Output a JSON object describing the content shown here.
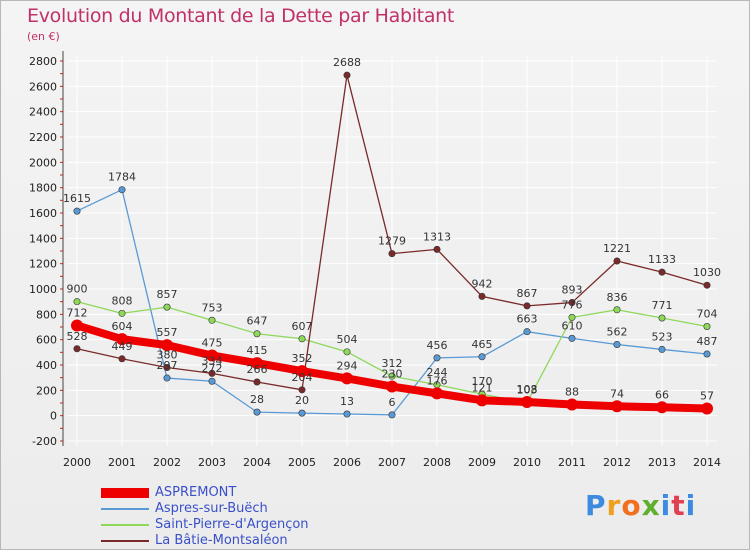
{
  "title": "Evolution du Montant de la Dette par Habitant",
  "subtitle": "(en €)",
  "logo_text": "Proxiti",
  "chart_data": {
    "type": "line",
    "x": [
      "2000",
      "2001",
      "2002",
      "2003",
      "2004",
      "2005",
      "2006",
      "2007",
      "2008",
      "2009",
      "2010",
      "2011",
      "2012",
      "2013",
      "2014"
    ],
    "ylim": [
      -200,
      2800
    ],
    "yticks": [
      -200,
      0,
      200,
      400,
      600,
      800,
      1000,
      1200,
      1400,
      1600,
      1800,
      2000,
      2200,
      2400,
      2600,
      2800
    ],
    "grid": true,
    "legend_position": "bottom-left",
    "series": [
      {
        "name": "Aspres-sur-Buëch",
        "color": "#5a9ad4",
        "width": 1.3,
        "values": [
          1615,
          1784,
          297,
          272,
          28,
          20,
          13,
          6,
          456,
          465,
          663,
          610,
          562,
          523,
          487
        ]
      },
      {
        "name": "Saint-Pierre-d'Argençon",
        "color": "#8ed85a",
        "width": 1.3,
        "values": [
          900,
          808,
          857,
          753,
          647,
          607,
          504,
          312,
          244,
          170,
          103,
          776,
          836,
          771,
          704
        ]
      },
      {
        "name": "La Bâtie-Montsaléon",
        "color": "#7a2a2a",
        "width": 1.3,
        "values": [
          528,
          449,
          380,
          334,
          266,
          204,
          null,
          1279,
          1313,
          942,
          867,
          893,
          1221,
          1133,
          1030
        ]
      },
      {
        "name": "ASPREMONT",
        "color": "#ee0000",
        "width": 8,
        "values": [
          712,
          604,
          557,
          475,
          415,
          352,
          294,
          230,
          176,
          121,
          108,
          88,
          74,
          66,
          57
        ]
      }
    ],
    "extra_point": {
      "series": "La Bâtie-Montsaléon",
      "x": "2006",
      "value": 2688
    },
    "data_labels": [
      {
        "x": "2000",
        "text": "1615"
      },
      {
        "x": "2001",
        "text": "1784"
      },
      {
        "x": "2006",
        "text": "2688"
      },
      {
        "x": "2007",
        "text": "1279"
      },
      {
        "x": "2008",
        "text": "1313"
      },
      {
        "x": "2012",
        "text": "1221"
      },
      {
        "x": "2013",
        "text": "1133"
      },
      {
        "x": "2014",
        "text": "1030"
      },
      {
        "x": "2009",
        "text": "942"
      },
      {
        "x": "2010",
        "text": "867"
      },
      {
        "x": "2011",
        "text": "893"
      },
      {
        "x": "2000",
        "text": "900"
      },
      {
        "x": "2001",
        "text": "808"
      },
      {
        "x": "2002",
        "text": "857"
      },
      {
        "x": "2003",
        "text": "753"
      },
      {
        "x": "2004",
        "text": "647"
      },
      {
        "x": "2005",
        "text": "607"
      },
      {
        "x": "2006",
        "text": "504"
      },
      {
        "x": "2011",
        "text": "776"
      },
      {
        "x": "2012",
        "text": "836"
      },
      {
        "x": "2013",
        "text": "771"
      },
      {
        "x": "2014",
        "text": "704"
      },
      {
        "x": "2000",
        "text": "712"
      },
      {
        "x": "2001",
        "text": "604"
      },
      {
        "x": "2002",
        "text": "557"
      },
      {
        "x": "2003",
        "text": "475"
      },
      {
        "x": "2004",
        "text": "415"
      },
      {
        "x": "2005",
        "text": "352"
      },
      {
        "x": "2006",
        "text": "294"
      },
      {
        "x": "2007",
        "text": "230"
      },
      {
        "x": "2008",
        "text": "176"
      },
      {
        "x": "2009",
        "text": "121"
      },
      {
        "x": "2010",
        "text": "108"
      },
      {
        "x": "2011",
        "text": "88"
      },
      {
        "x": "2012",
        "text": "74"
      },
      {
        "x": "2013",
        "text": "66"
      },
      {
        "x": "2014",
        "text": "57"
      },
      {
        "x": "2010",
        "text": "663"
      },
      {
        "x": "2011",
        "text": "610"
      },
      {
        "x": "2012",
        "text": "562"
      },
      {
        "x": "2013",
        "text": "523"
      },
      {
        "x": "2014",
        "text": "487"
      },
      {
        "x": "2008",
        "text": "456"
      },
      {
        "x": "2009",
        "text": "465"
      },
      {
        "x": "2004",
        "text": "28"
      },
      {
        "x": "2005",
        "text": "20"
      },
      {
        "x": "2006",
        "text": "13"
      },
      {
        "x": "2007",
        "text": "6"
      },
      {
        "x": "2000",
        "text": "528"
      },
      {
        "x": "2001",
        "text": "449"
      },
      {
        "x": "2002",
        "text": "380"
      },
      {
        "x": "2002",
        "text": "297"
      },
      {
        "x": "2003",
        "text": "334"
      },
      {
        "x": "2003",
        "text": "272"
      },
      {
        "x": "2004",
        "text": "266"
      },
      {
        "x": "2005",
        "text": "204"
      },
      {
        "x": "2007",
        "text": "312"
      },
      {
        "x": "2008",
        "text": "244"
      },
      {
        "x": "2009",
        "text": "170"
      },
      {
        "x": "2010",
        "text": "103"
      }
    ]
  }
}
